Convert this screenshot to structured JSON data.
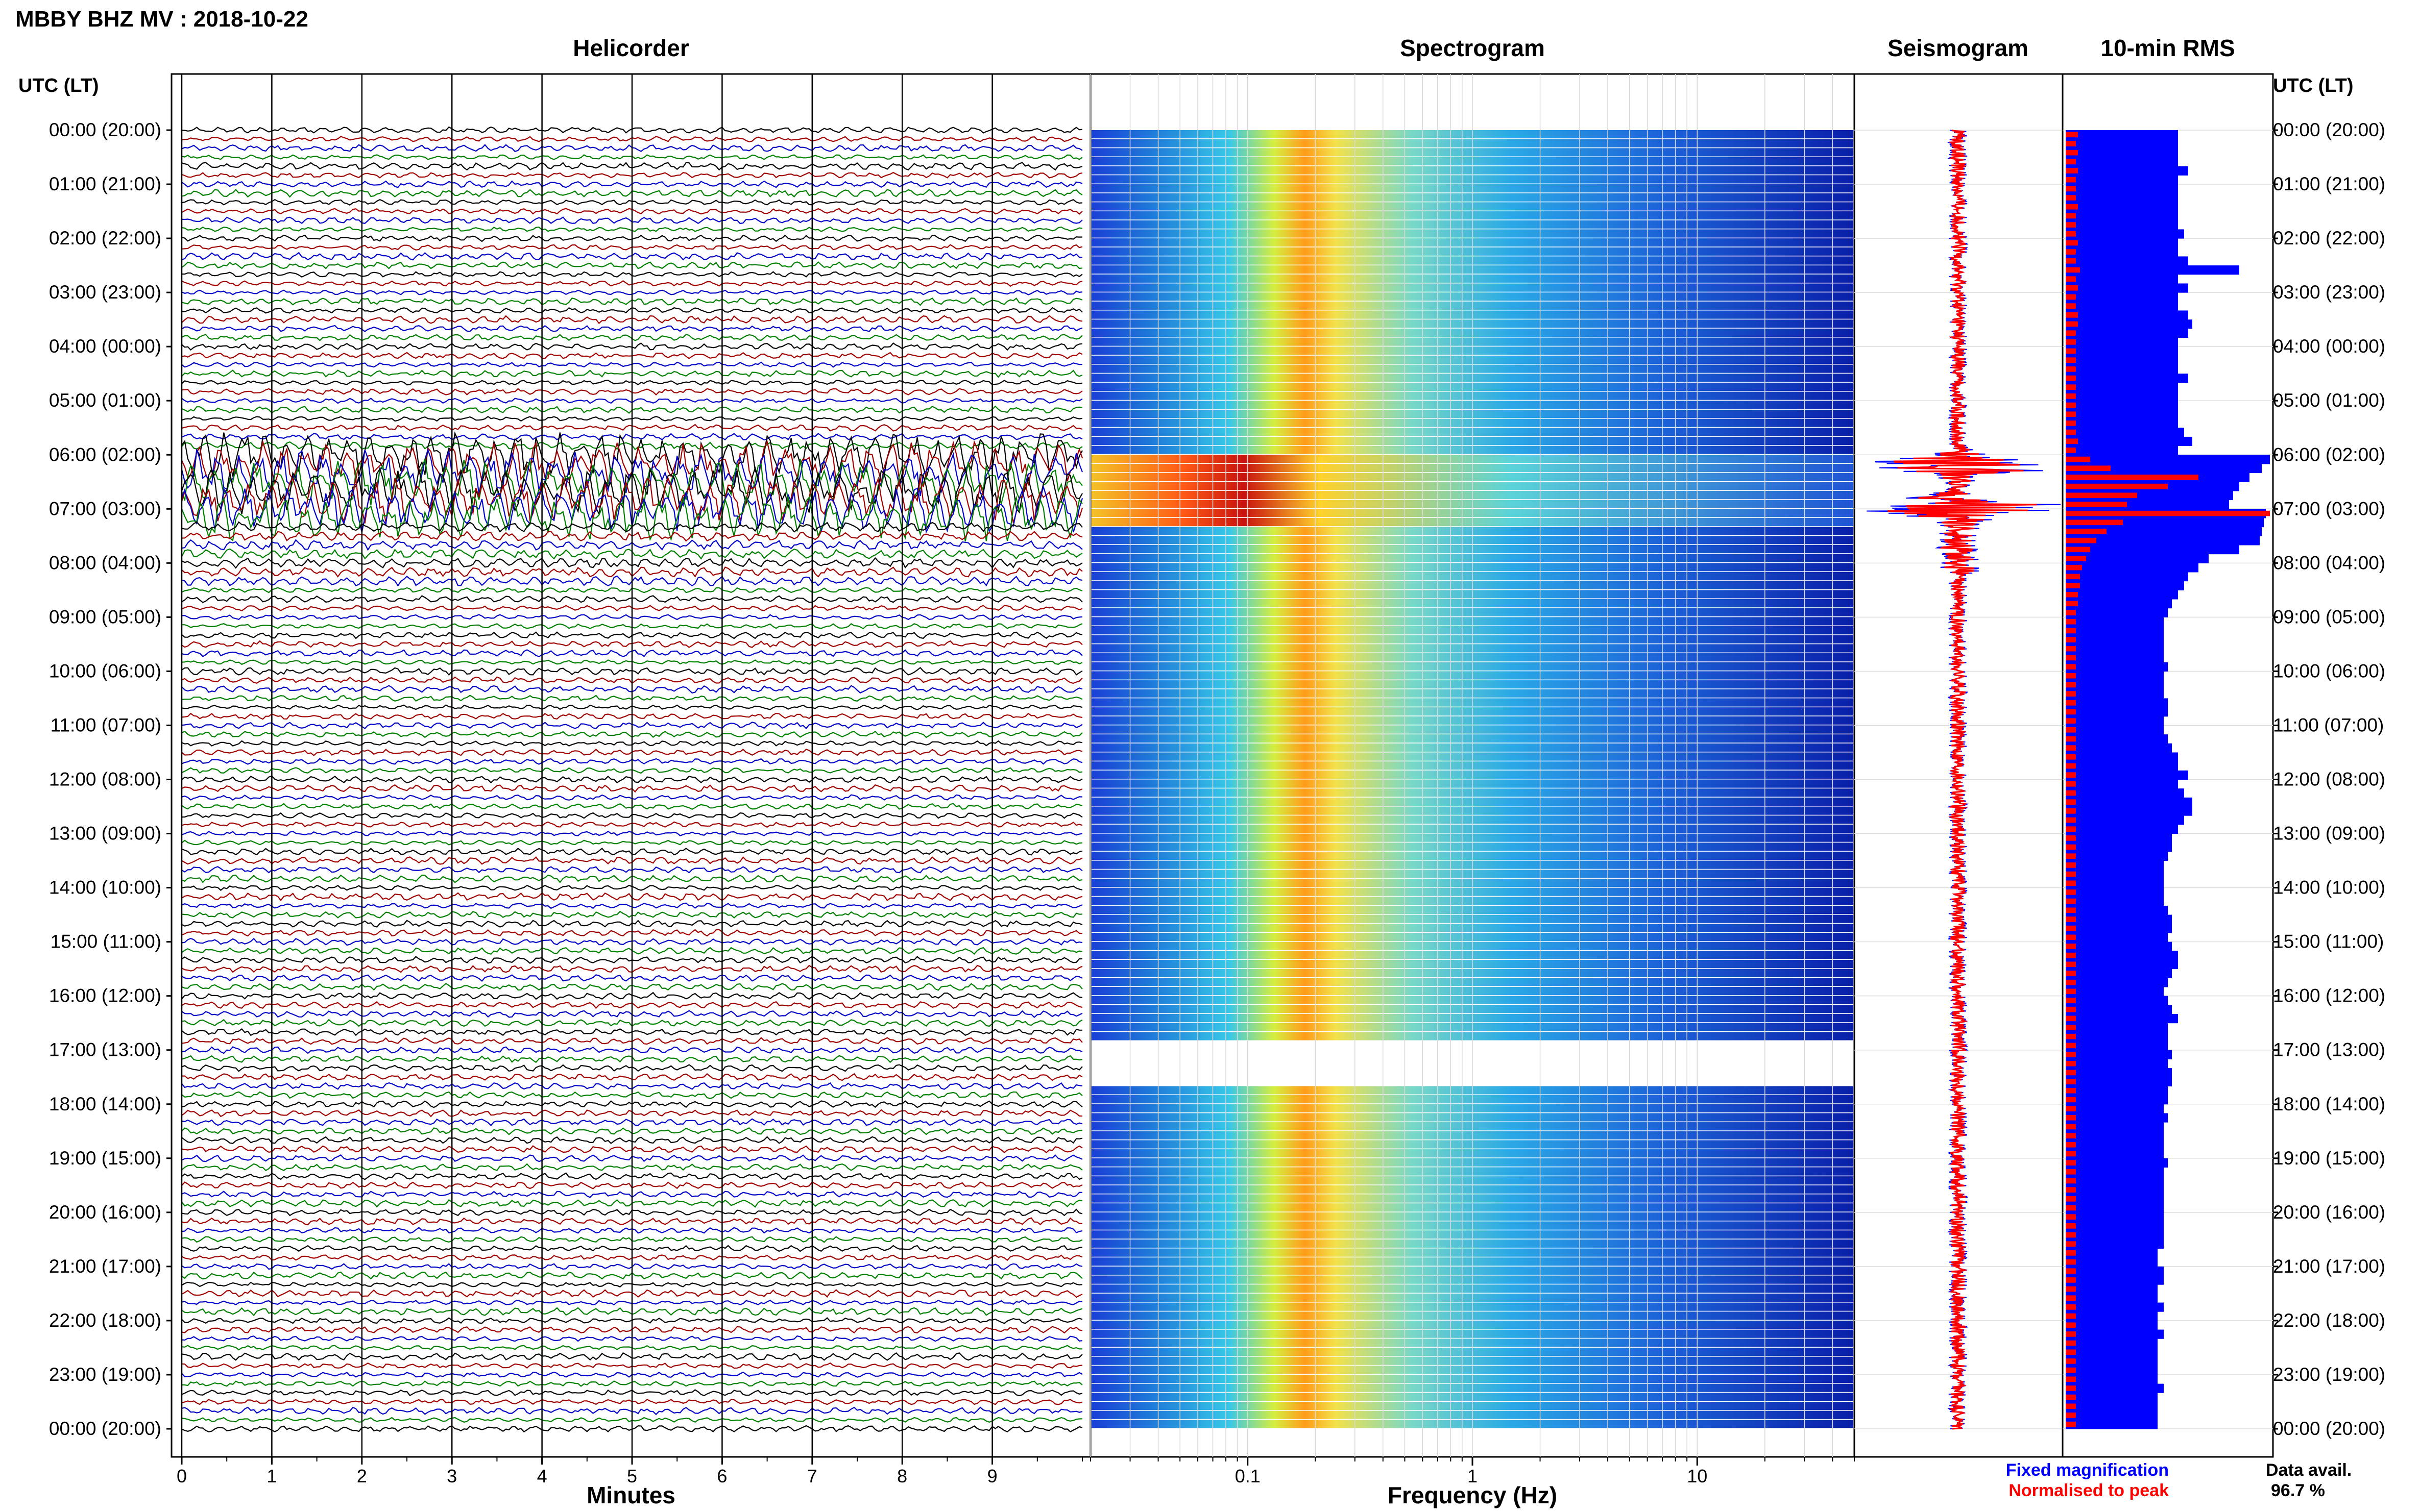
{
  "header": {
    "title": "MBBY BHZ MV : 2018-10-22",
    "time_axis_label_left": "UTC (LT)",
    "time_axis_label_right": "UTC (LT)"
  },
  "panels": {
    "helicorder": "Helicorder",
    "spectrogram": "Spectrogram",
    "seismogram": "Seismogram",
    "rms": "10-min RMS"
  },
  "colors": {
    "trace_cycle": [
      "#000000",
      "#a00000",
      "#0000c8",
      "#008000"
    ],
    "rms_fixed": "#0000ff",
    "rms_peak": "#ff0000",
    "spectrogram_low": "#00008c",
    "spectrogram_high": "#8c0000"
  },
  "chart_data": [
    {
      "type": "line",
      "panel": "helicorder",
      "x_axis": {
        "label": "Minutes",
        "ticks": [
          "0",
          "1",
          "2",
          "3",
          "4",
          "5",
          "6",
          "7",
          "8",
          "9"
        ],
        "range": [
          0,
          10
        ]
      },
      "y_ticks": [
        "00:00 (20:00)",
        "01:00 (21:00)",
        "02:00 (22:00)",
        "03:00 (23:00)",
        "04:00 (00:00)",
        "05:00 (01:00)",
        "06:00 (02:00)",
        "07:00 (03:00)",
        "08:00 (04:00)",
        "09:00 (05:00)",
        "10:00 (06:00)",
        "11:00 (07:00)",
        "12:00 (08:00)",
        "13:00 (09:00)",
        "14:00 (10:00)",
        "15:00 (11:00)",
        "16:00 (12:00)",
        "17:00 (13:00)",
        "18:00 (14:00)",
        "19:00 (15:00)",
        "20:00 (16:00)",
        "21:00 (17:00)",
        "22:00 (18:00)",
        "23:00 (19:00)",
        "00:00 (20:00)"
      ],
      "lines_per_hour": 6,
      "hours": 24,
      "grid": true
    },
    {
      "type": "heatmap",
      "panel": "spectrogram",
      "x_axis": {
        "label": "Frequency (Hz)",
        "ticks": [
          "0.1",
          "1",
          "10"
        ],
        "scale": "log",
        "range": [
          0.02,
          50
        ]
      },
      "y_range_hours": [
        0,
        24
      ],
      "data_gaps_hours": [
        [
          16.8,
          17.6
        ]
      ],
      "strong_event_hours": [
        6.0,
        7.2
      ]
    },
    {
      "type": "line",
      "panel": "seismogram",
      "series": [
        {
          "name": "Fixed magnification",
          "color": "#0000ff"
        },
        {
          "name": "Normalised to peak",
          "color": "#ff0000"
        }
      ],
      "event_peak_hours": [
        6.2,
        6.95
      ]
    },
    {
      "type": "bar",
      "panel": "10-min RMS",
      "orientation": "horizontal",
      "series": [
        {
          "name": "Fixed magnification",
          "color": "#0000ff",
          "values": [
            0.55,
            0.55,
            0.55,
            0.55,
            0.6,
            0.55,
            0.55,
            0.55,
            0.55,
            0.55,
            0.55,
            0.58,
            0.55,
            0.55,
            0.6,
            0.85,
            0.55,
            0.6,
            0.55,
            0.55,
            0.6,
            0.62,
            0.6,
            0.55,
            0.55,
            0.55,
            0.55,
            0.6,
            0.55,
            0.55,
            0.55,
            0.55,
            0.55,
            0.58,
            0.62,
            0.55,
            1.0,
            0.96,
            0.9,
            0.85,
            0.82,
            0.8,
            0.98,
            0.97,
            0.96,
            0.95,
            0.85,
            0.7,
            0.65,
            0.6,
            0.58,
            0.55,
            0.52,
            0.5,
            0.48,
            0.48,
            0.48,
            0.48,
            0.48,
            0.5,
            0.48,
            0.48,
            0.48,
            0.5,
            0.5,
            0.48,
            0.48,
            0.5,
            0.52,
            0.55,
            0.55,
            0.6,
            0.55,
            0.58,
            0.62,
            0.62,
            0.58,
            0.55,
            0.52,
            0.52,
            0.5,
            0.48,
            0.48,
            0.48,
            0.48,
            0.48,
            0.5,
            0.52,
            0.52,
            0.5,
            0.52,
            0.55,
            0.55,
            0.52,
            0.5,
            0.48,
            0.5,
            0.52,
            0.55,
            0.5,
            0.5,
            0.5,
            0.52,
            0.5,
            0.52,
            0.52,
            0.5,
            0.5,
            0.48,
            0.5,
            0.48,
            0.48,
            0.48,
            0.48,
            0.5,
            0.48,
            0.48,
            0.48,
            0.48,
            0.48,
            0.48,
            0.48,
            0.48,
            0.48,
            0.45,
            0.45,
            0.48,
            0.48,
            0.45,
            0.45,
            0.48,
            0.45,
            0.45,
            0.48,
            0.45,
            0.45,
            0.45,
            0.45,
            0.45,
            0.48,
            0.45,
            0.45,
            0.45,
            0.45
          ]
        },
        {
          "name": "Normalised to peak",
          "color": "#ff0000",
          "values": [
            0.06,
            0.05,
            0.06,
            0.05,
            0.06,
            0.05,
            0.05,
            0.05,
            0.06,
            0.05,
            0.05,
            0.05,
            0.06,
            0.05,
            0.05,
            0.07,
            0.05,
            0.06,
            0.05,
            0.05,
            0.06,
            0.06,
            0.05,
            0.05,
            0.05,
            0.05,
            0.05,
            0.05,
            0.05,
            0.05,
            0.05,
            0.05,
            0.05,
            0.05,
            0.06,
            0.05,
            0.12,
            0.22,
            0.65,
            0.5,
            0.35,
            0.3,
            1.0,
            0.28,
            0.2,
            0.15,
            0.12,
            0.1,
            0.08,
            0.07,
            0.07,
            0.06,
            0.06,
            0.05,
            0.05,
            0.05,
            0.05,
            0.05,
            0.05,
            0.05,
            0.05,
            0.05,
            0.05,
            0.05,
            0.05,
            0.05,
            0.05,
            0.05,
            0.05,
            0.05,
            0.05,
            0.05,
            0.05,
            0.05,
            0.05,
            0.05,
            0.05,
            0.05,
            0.05,
            0.05,
            0.05,
            0.05,
            0.05,
            0.05,
            0.05,
            0.05,
            0.05,
            0.05,
            0.05,
            0.05,
            0.05,
            0.05,
            0.05,
            0.05,
            0.05,
            0.05,
            0.05,
            0.05,
            0.05,
            0.05,
            0.05,
            0.05,
            0.05,
            0.05,
            0.05,
            0.05,
            0.05,
            0.05,
            0.05,
            0.05,
            0.05,
            0.05,
            0.05,
            0.05,
            0.05,
            0.05,
            0.05,
            0.05,
            0.05,
            0.05,
            0.05,
            0.05,
            0.05,
            0.05,
            0.05,
            0.05,
            0.05,
            0.05,
            0.05,
            0.05,
            0.05,
            0.05,
            0.05,
            0.05,
            0.05,
            0.05,
            0.05,
            0.05,
            0.05,
            0.05,
            0.05,
            0.05,
            0.05,
            0.05
          ]
        }
      ]
    }
  ],
  "footer": {
    "minutes_label": "Minutes",
    "frequency_label": "Frequency (Hz)",
    "legend_fixed": "Fixed magnification",
    "legend_peak": "Normalised to peak",
    "data_avail_label": "Data avail.",
    "data_avail_value": "96.7 %"
  }
}
